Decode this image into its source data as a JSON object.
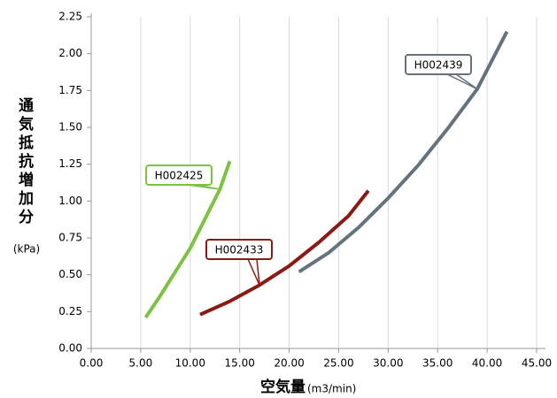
{
  "chart_data": {
    "type": "line",
    "x_label": "空気量",
    "x_unit": "(m3/min)",
    "y_label": "通気抵抗増加分",
    "y_unit": "(kPa)",
    "xlim": [
      0,
      45
    ],
    "xticks": [
      {
        "value": 0,
        "label": "0.00"
      },
      {
        "value": 5,
        "label": "5.00"
      },
      {
        "value": 10,
        "label": "10.00"
      },
      {
        "value": 15,
        "label": "15.00"
      },
      {
        "value": 20,
        "label": "20.00"
      },
      {
        "value": 25,
        "label": "25.00"
      },
      {
        "value": 30,
        "label": "30.00"
      },
      {
        "value": 35,
        "label": "35.00"
      },
      {
        "value": 40,
        "label": "40.00"
      },
      {
        "value": 45,
        "label": "45.00"
      }
    ],
    "ylim": [
      0,
      2.25
    ],
    "yticks": [
      {
        "value": 0,
        "label": "0.00"
      },
      0.25,
      {
        "value": 0.5,
        "label": "0.50"
      },
      0.75,
      {
        "value": 1,
        "label": "1.00"
      },
      1.25,
      {
        "value": 1.5,
        "label": "1.50"
      },
      1.75,
      {
        "value": 2,
        "label": "2.00"
      },
      2.25
    ],
    "grid": "x",
    "series": [
      {
        "name": "H002425",
        "color": "#7dc242",
        "x": [
          5.5,
          7,
          8.5,
          10,
          11.5,
          13,
          14
        ],
        "values": [
          0.21,
          0.36,
          0.52,
          0.68,
          0.88,
          1.08,
          1.27
        ]
      },
      {
        "name": "H002433",
        "color": "#8b1a14",
        "x": [
          11,
          14,
          17,
          20,
          23,
          26,
          28
        ],
        "values": [
          0.23,
          0.32,
          0.43,
          0.56,
          0.72,
          0.9,
          1.07
        ]
      },
      {
        "name": "H002439",
        "color": "#66737f",
        "x": [
          21,
          24,
          27,
          30,
          33,
          36,
          39,
          42
        ],
        "values": [
          0.52,
          0.65,
          0.82,
          1.02,
          1.24,
          1.49,
          1.76,
          2.15
        ]
      }
    ]
  }
}
